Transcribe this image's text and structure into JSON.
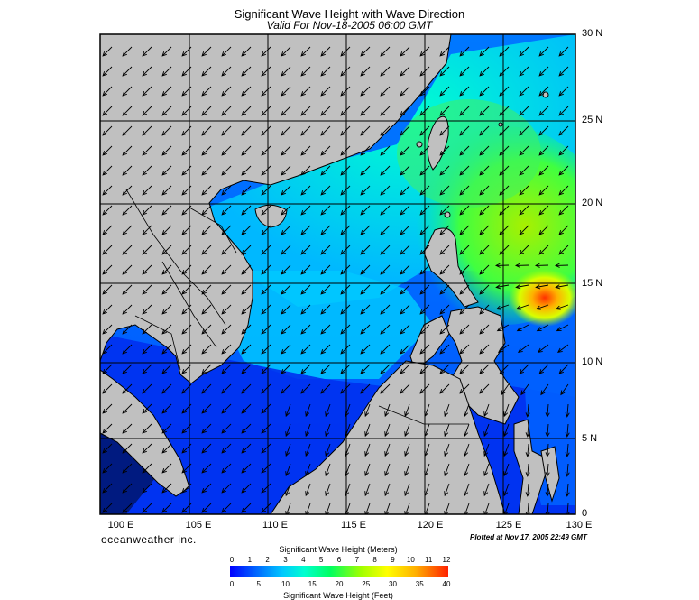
{
  "header": {
    "title": "Significant Wave Height with Wave Direction",
    "subtitle": "Valid For Nov-18-2005 06:00 GMT"
  },
  "map": {
    "lat_labels": [
      "30 N",
      "25 N",
      "20 N",
      "15 N",
      "10 N",
      "5 N",
      "0"
    ],
    "lon_labels": [
      "100 E",
      "105 E",
      "110 E",
      "115 E",
      "120 E",
      "125 E",
      "130 E"
    ],
    "land_color": "#c0c0c0",
    "wave_colors": {
      "calm": "#0000ff",
      "low": "#00c8ff",
      "moderate": "#00ff60",
      "high": "#a0ff00",
      "peak": "#ff6000"
    }
  },
  "footer": {
    "brand": "oceanweather inc.",
    "plotted": "Plotted at Nov 17, 2005 22:49 GMT"
  },
  "legend": {
    "meters_title": "Significant Wave Height (Meters)",
    "meters_ticks": [
      "0",
      "1",
      "2",
      "3",
      "4",
      "5",
      "6",
      "7",
      "8",
      "9",
      "10",
      "11",
      "12"
    ],
    "feet_title": "Significant Wave Height (Feet)",
    "feet_ticks": [
      "0",
      "5",
      "10",
      "15",
      "20",
      "25",
      "30",
      "35",
      "40"
    ]
  }
}
